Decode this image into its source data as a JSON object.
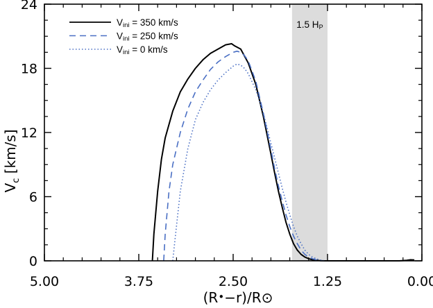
{
  "chart_data": {
    "type": "line",
    "xlabel": {
      "pre": "(R",
      "post": "−r)/R"
    },
    "ylabel": {
      "pre": "V",
      "sub": "c",
      "post": " [km/s]"
    },
    "xlim": [
      5.0,
      0.0
    ],
    "ylim": [
      0,
      24
    ],
    "x_reversed": true,
    "x_ticks": [
      5.0,
      3.75,
      2.5,
      1.25,
      0.0
    ],
    "x_tick_labels": [
      "5.00",
      "3.75",
      "2.50",
      "1.25",
      "0.00"
    ],
    "y_ticks": [
      0,
      6,
      12,
      18,
      24
    ],
    "y_tick_labels": [
      "0",
      "6",
      "12",
      "18",
      "24"
    ],
    "grid": false,
    "legend_placement": "top-left",
    "shaded_band": {
      "x_from": 1.72,
      "x_to": 1.25,
      "label_main": "1.5 H",
      "label_sub": "P",
      "color": "#dcdcdc"
    },
    "series": [
      {
        "name_pre": "V",
        "name_sub": "ini",
        "name_post": " = 350 km/s",
        "color": "#000000",
        "dash": "",
        "x": [
          3.57,
          3.55,
          3.5,
          3.45,
          3.4,
          3.3,
          3.2,
          3.1,
          3.0,
          2.9,
          2.8,
          2.7,
          2.6,
          2.52,
          2.48,
          2.4,
          2.3,
          2.2,
          2.1,
          2.0,
          1.95,
          1.9,
          1.85,
          1.8,
          1.75,
          1.7,
          1.65,
          1.6,
          1.55,
          1.5,
          1.45,
          1.4,
          1.35,
          1.3,
          1.25,
          0.3,
          0.2,
          0.15,
          0.1
        ],
        "y": [
          0,
          2.5,
          6.5,
          9.5,
          11.5,
          14.0,
          15.8,
          17.0,
          18.0,
          18.8,
          19.4,
          19.8,
          20.2,
          20.3,
          20.1,
          19.8,
          18.5,
          16.5,
          13.5,
          10.0,
          8.2,
          6.5,
          5.0,
          3.6,
          2.5,
          1.6,
          1.0,
          0.6,
          0.35,
          0.2,
          0.1,
          0.05,
          0.02,
          0.0,
          0.0,
          0.0,
          0.05,
          0.1,
          0.08
        ]
      },
      {
        "name_pre": "V",
        "name_sub": "ini",
        "name_post": " = 250 km/s",
        "color": "#4a6fc4",
        "dash": "9,6",
        "x": [
          3.42,
          3.4,
          3.35,
          3.3,
          3.2,
          3.1,
          3.0,
          2.9,
          2.8,
          2.7,
          2.6,
          2.5,
          2.45,
          2.4,
          2.35,
          2.3,
          2.2,
          2.1,
          2.0,
          1.95,
          1.9,
          1.85,
          1.8,
          1.75,
          1.7,
          1.65,
          1.6,
          1.55,
          1.5,
          1.45,
          1.4,
          1.35,
          1.3
        ],
        "y": [
          0,
          2.5,
          6.5,
          9.0,
          12.0,
          14.2,
          15.8,
          16.9,
          17.9,
          18.6,
          19.1,
          19.5,
          19.6,
          19.5,
          19.2,
          18.7,
          16.8,
          13.8,
          10.4,
          8.6,
          7.0,
          5.6,
          4.3,
          3.2,
          2.3,
          1.6,
          1.0,
          0.6,
          0.35,
          0.2,
          0.1,
          0.03,
          0.0
        ]
      },
      {
        "name_pre": "V",
        "name_sub": "ini",
        "name_post": " = 0 km/s",
        "color": "#4a6fc4",
        "dash": "1.5,3",
        "x": [
          3.3,
          3.27,
          3.2,
          3.1,
          3.0,
          2.9,
          2.8,
          2.7,
          2.6,
          2.5,
          2.45,
          2.4,
          2.35,
          2.3,
          2.2,
          2.1,
          2.0,
          1.95,
          1.9,
          1.85,
          1.8,
          1.75,
          1.7,
          1.65,
          1.6,
          1.55,
          1.5,
          1.45,
          1.4,
          1.35,
          1.3,
          1.28
        ],
        "y": [
          0,
          2.0,
          6.5,
          10.5,
          13.2,
          14.8,
          16.0,
          16.9,
          17.6,
          18.2,
          18.4,
          18.3,
          18.0,
          17.5,
          16.0,
          13.8,
          11.0,
          9.6,
          8.2,
          6.8,
          5.5,
          4.3,
          3.2,
          2.3,
          1.6,
          1.0,
          0.6,
          0.35,
          0.2,
          0.08,
          0.02,
          0.0
        ]
      }
    ]
  }
}
